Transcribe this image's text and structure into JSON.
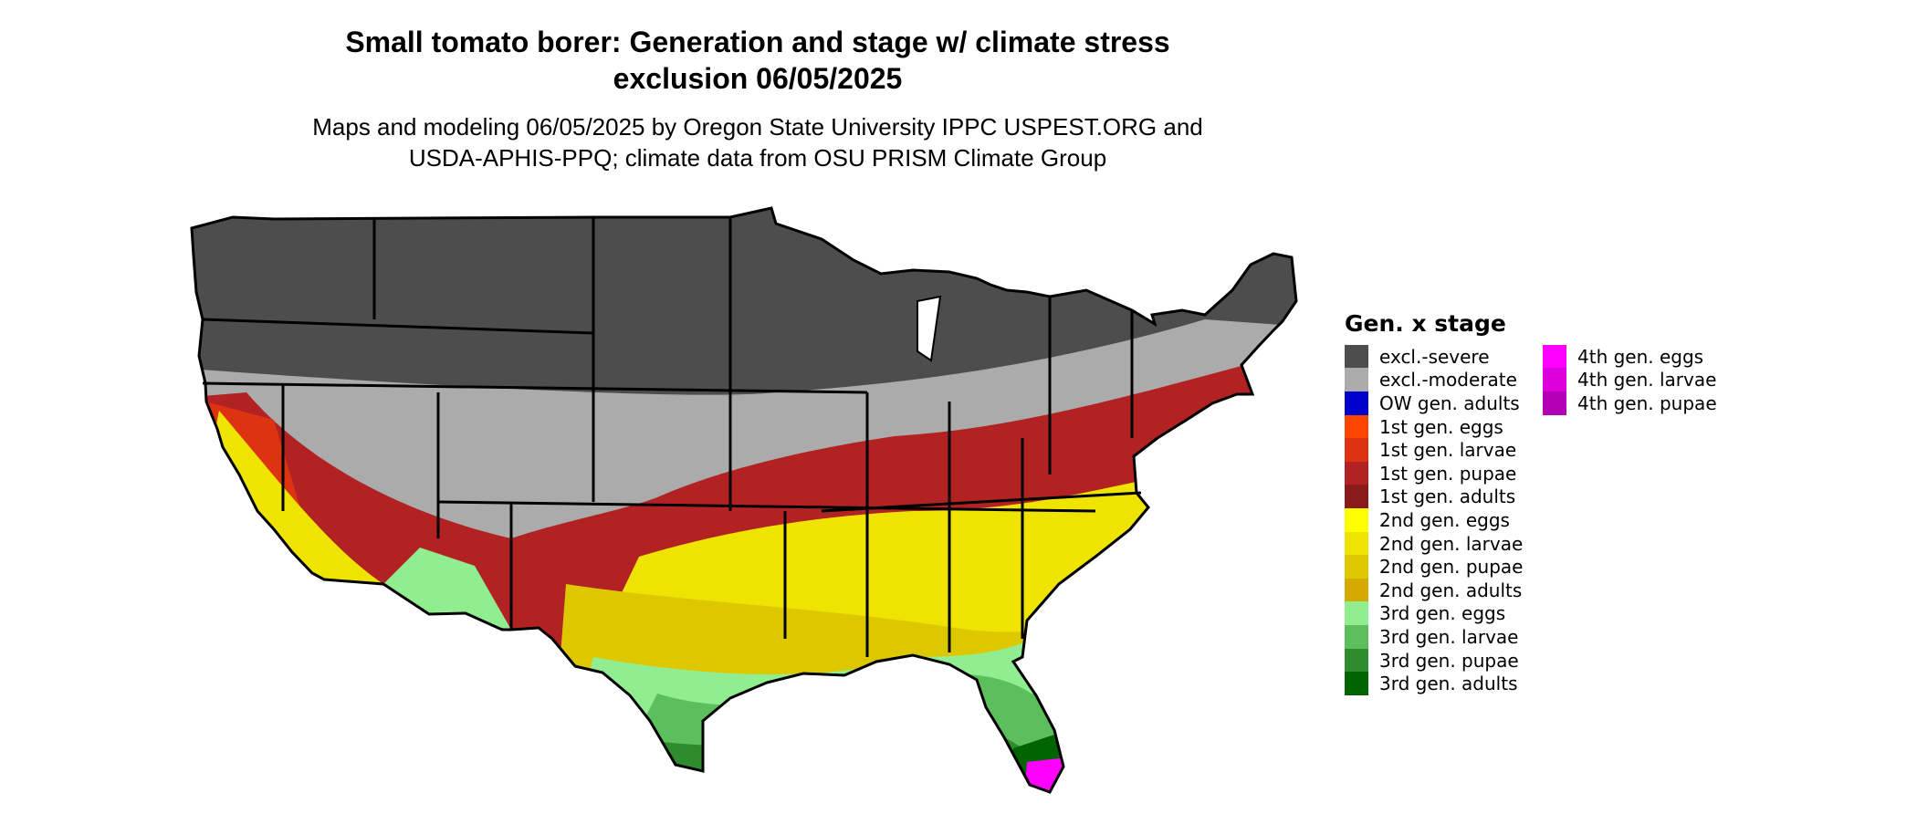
{
  "header": {
    "title_line1": "Small tomato borer: Generation and stage w/ climate stress",
    "title_line2": "exclusion 06/05/2025",
    "subtitle_line1": "Maps and modeling 06/05/2025 by Oregon State University IPPC USPEST.ORG and",
    "subtitle_line2": "USDA-APHIS-PPQ; climate data from OSU PRISM Climate Group"
  },
  "legend": {
    "title": "Gen. x stage",
    "col1": [
      {
        "label": "excl.-severe",
        "color": "#4d4d4d"
      },
      {
        "label": "excl.-moderate",
        "color": "#ababab"
      },
      {
        "label": "OW gen. adults",
        "color": "#0000cd"
      },
      {
        "label": "1st gen. eggs",
        "color": "#ff4500"
      },
      {
        "label": "1st gen. larvae",
        "color": "#dd3311"
      },
      {
        "label": "1st gen. pupae",
        "color": "#b22222"
      },
      {
        "label": "1st gen. adults",
        "color": "#8b1a1a"
      },
      {
        "label": "2nd gen. eggs",
        "color": "#ffff00"
      },
      {
        "label": "2nd gen. larvae",
        "color": "#eee400"
      },
      {
        "label": "2nd gen. pupae",
        "color": "#ddc800"
      },
      {
        "label": "2nd gen. adults",
        "color": "#d4aa00"
      },
      {
        "label": "3rd gen. eggs",
        "color": "#90ee90"
      },
      {
        "label": "3rd gen. larvae",
        "color": "#5cbf5c"
      },
      {
        "label": "3rd gen. pupae",
        "color": "#2e8b2e"
      },
      {
        "label": "3rd gen. adults",
        "color": "#006400"
      }
    ],
    "col2": [
      {
        "label": "4th gen. eggs",
        "color": "#ff00ff"
      },
      {
        "label": "4th gen. larvae",
        "color": "#dd00dd"
      },
      {
        "label": "4th gen. pupae",
        "color": "#b400b4"
      }
    ]
  }
}
